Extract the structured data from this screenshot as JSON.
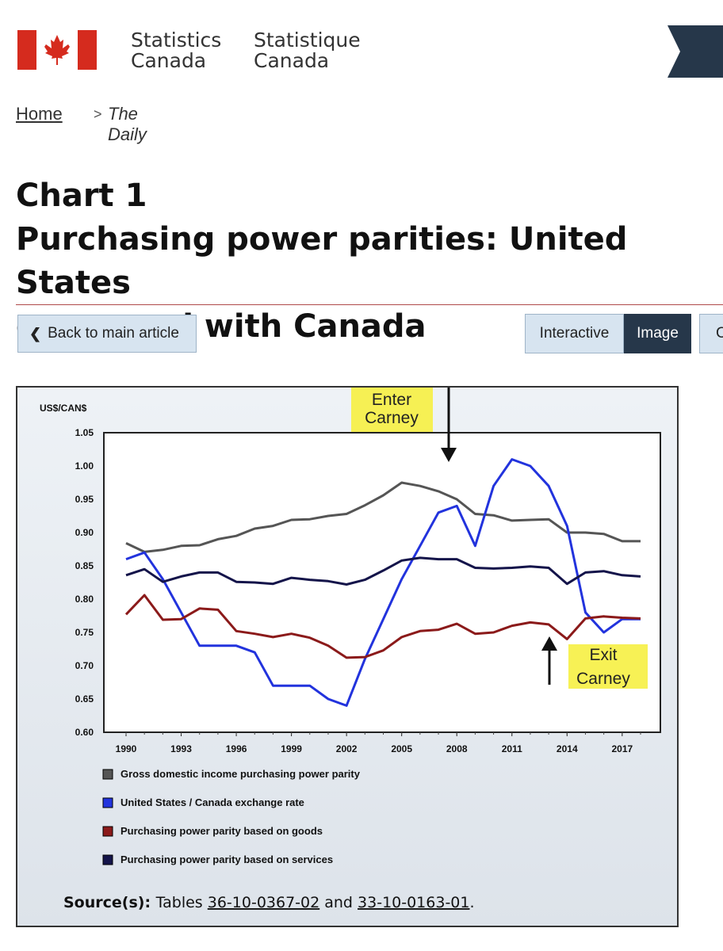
{
  "header": {
    "signature_en": [
      "Statistics",
      "Canada"
    ],
    "signature_fr": [
      "Statistique",
      "Canada"
    ]
  },
  "breadcrumb": {
    "home": "Home",
    "separator": ">",
    "current": "The Daily"
  },
  "title": {
    "line1": "Chart 1",
    "line2": "Purchasing power parities: United States",
    "line3": "compared with Canada"
  },
  "buttons": {
    "back": "Back to main article",
    "interactive": "Interactive",
    "image": "Image",
    "partial": "C"
  },
  "annotations": {
    "enter": [
      "Enter",
      "Carney"
    ],
    "exit": [
      "Exit",
      "Carney"
    ]
  },
  "source": {
    "label": "Source(s):",
    "text_before": "Tables",
    "link1": "36-10-0367-02",
    "text_mid": "and",
    "link2": "33-10-0163-01",
    "text_after": "."
  },
  "colors": {
    "gdi": "#555555",
    "exchange": "#2233dd",
    "goods": "#8b1a1a",
    "services": "#14144a",
    "highlight": "#f6f043"
  },
  "chart_data": {
    "type": "line",
    "ylabel": "US$/CAN$",
    "ylim": [
      0.6,
      1.05
    ],
    "yticks": [
      "0.60",
      "0.65",
      "0.70",
      "0.75",
      "0.80",
      "0.85",
      "0.90",
      "0.95",
      "1.00",
      "1.05"
    ],
    "xticks": [
      "1990",
      "1993",
      "1996",
      "1999",
      "2002",
      "2005",
      "2008",
      "2011",
      "2014",
      "2017"
    ],
    "x": [
      1990,
      1991,
      1992,
      1993,
      1994,
      1995,
      1996,
      1997,
      1998,
      1999,
      2000,
      2001,
      2002,
      2003,
      2004,
      2005,
      2006,
      2007,
      2008,
      2009,
      2010,
      2011,
      2012,
      2013,
      2014,
      2015,
      2016,
      2017,
      2018
    ],
    "legend_placement": "bottom",
    "series": [
      {
        "name": "Gross domestic income purchasing power parity",
        "color": "#555555",
        "values": [
          0.884,
          0.871,
          0.874,
          0.88,
          0.881,
          0.89,
          0.895,
          0.906,
          0.91,
          0.919,
          0.92,
          0.925,
          0.928,
          0.941,
          0.956,
          0.975,
          0.97,
          0.962,
          0.95,
          0.928,
          0.926,
          0.918,
          0.919,
          0.92,
          0.9,
          0.9,
          0.898,
          0.887,
          0.887
        ]
      },
      {
        "name": "United States / Canada exchange rate",
        "color": "#2233dd",
        "values": [
          0.86,
          0.87,
          0.83,
          0.78,
          0.73,
          0.73,
          0.73,
          0.72,
          0.67,
          0.67,
          0.67,
          0.65,
          0.64,
          0.71,
          0.77,
          0.83,
          0.88,
          0.93,
          0.94,
          0.88,
          0.97,
          1.01,
          1.0,
          0.97,
          0.91,
          0.78,
          0.75,
          0.77,
          0.77
        ]
      },
      {
        "name": "Purchasing power parity based on goods",
        "color": "#8b1a1a",
        "values": [
          0.777,
          0.806,
          0.769,
          0.77,
          0.786,
          0.784,
          0.752,
          0.748,
          0.743,
          0.748,
          0.742,
          0.73,
          0.712,
          0.713,
          0.723,
          0.743,
          0.752,
          0.754,
          0.763,
          0.748,
          0.75,
          0.76,
          0.765,
          0.762,
          0.74,
          0.771,
          0.774,
          0.772,
          0.771
        ]
      },
      {
        "name": "Purchasing power parity based on services",
        "color": "#14144a",
        "values": [
          0.836,
          0.845,
          0.826,
          0.834,
          0.84,
          0.84,
          0.826,
          0.825,
          0.823,
          0.832,
          0.829,
          0.827,
          0.822,
          0.829,
          0.843,
          0.858,
          0.862,
          0.86,
          0.86,
          0.847,
          0.846,
          0.847,
          0.849,
          0.847,
          0.823,
          0.84,
          0.842,
          0.836,
          0.834
        ]
      }
    ]
  }
}
